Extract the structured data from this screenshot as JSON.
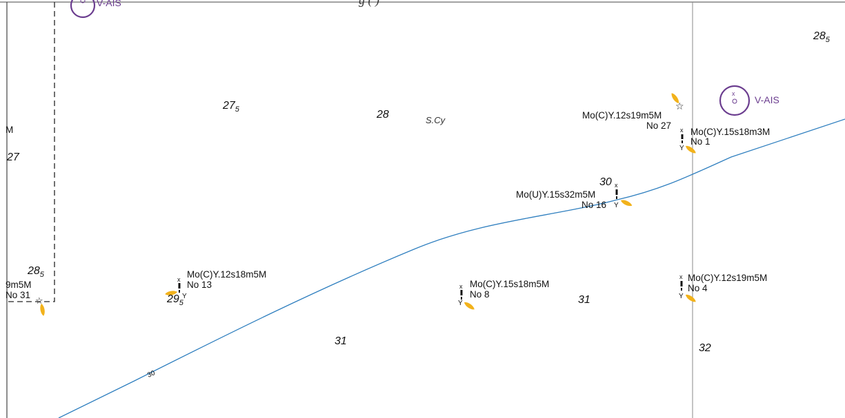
{
  "colors": {
    "depth_contour": "#2f7fbf",
    "light_flare": "#f2b21b",
    "virtual_ais": "#6b3d8f",
    "border": "#444444",
    "grid_line": "#888888"
  },
  "top_clipped_text": "g  (  )",
  "virtual_ais": [
    {
      "label": "V-AIS"
    },
    {
      "label": "V-AIS"
    }
  ],
  "depths": {
    "d275": {
      "main": "27",
      "sub": "5"
    },
    "d28": {
      "main": "28"
    },
    "d285_tr": {
      "main": "28",
      "sub": "5"
    },
    "d285_l": {
      "main": "28",
      "sub": "5"
    },
    "d27": {
      "main": "27"
    },
    "d30": {
      "main": "30"
    },
    "d295": {
      "main": "29",
      "sub": "5"
    },
    "d31_a": {
      "main": "31"
    },
    "d31_b": {
      "main": "31"
    },
    "d32": {
      "main": "32"
    }
  },
  "seabed_note": "S.Cy",
  "left_edge_text": "M",
  "contour_label": "30",
  "buoys": [
    {
      "light": "Mo(C)Y.12s19m5M",
      "name": "No 27"
    },
    {
      "light": "Mo(C)Y.15s18m3M",
      "name": "No 1",
      "colour_code": "Y"
    },
    {
      "light": "Mo(U)Y.15s32m5M",
      "name": "No 16",
      "colour_code": "Y"
    },
    {
      "light": "Mo(C)Y.12s18m5M",
      "name": "No 13",
      "colour_code": "Y"
    },
    {
      "light": "Mo(C)Y.15s18m5M",
      "name": "No 8",
      "colour_code": "Y"
    },
    {
      "light": "Mo(C)Y.12s19m5M",
      "name": "No 4",
      "colour_code": "Y"
    },
    {
      "light": "9m5M",
      "name": "No 31"
    }
  ]
}
